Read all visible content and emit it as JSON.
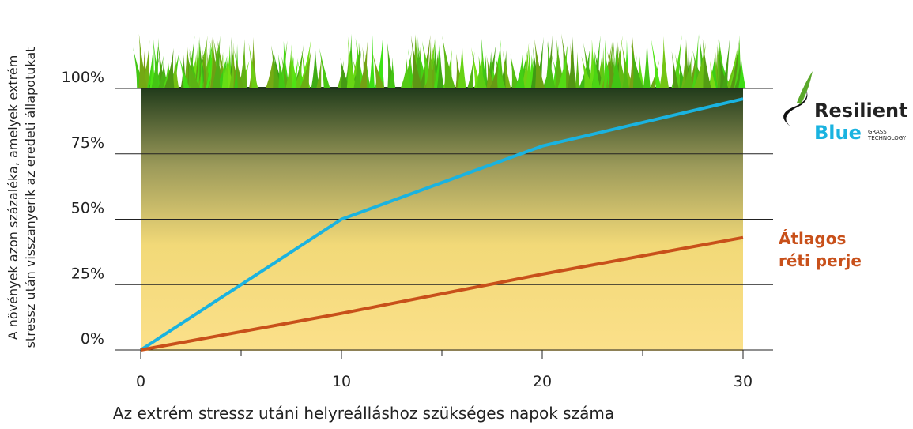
{
  "chart_data": {
    "type": "line",
    "x": [
      0,
      10,
      20,
      30
    ],
    "series": [
      {
        "color": "#1ab3e0",
        "values": [
          0,
          50,
          78,
          96
        ]
      },
      {
        "name": "Átlagos réti perje",
        "color": "#c8501a",
        "values": [
          0,
          14,
          29,
          43
        ]
      }
    ],
    "logo": {
      "line1": "Resilient",
      "line2": "Blue",
      "tagline": "GRASS TECHNOLOGY"
    },
    "xlim": [
      0,
      30
    ],
    "xticks": [
      0,
      10,
      20,
      30
    ],
    "xminorticks": [
      5,
      15,
      25
    ],
    "ylim": [
      0,
      100
    ],
    "yticks": [
      {
        "value": 0,
        "label": "0%"
      },
      {
        "value": 25,
        "label": "25%"
      },
      {
        "value": 50,
        "label": "50%"
      },
      {
        "value": 75,
        "label": "75%"
      },
      {
        "value": 100,
        "label": "100%"
      }
    ],
    "xlabel": "Az extrém stressz utáni helyreálláshoz szükséges napok száma",
    "ylabel": [
      "A növények azon százaléka, amelyek extrém",
      "stressz után visszanyerik az eredeti állapotukat"
    ],
    "grid": true
  }
}
